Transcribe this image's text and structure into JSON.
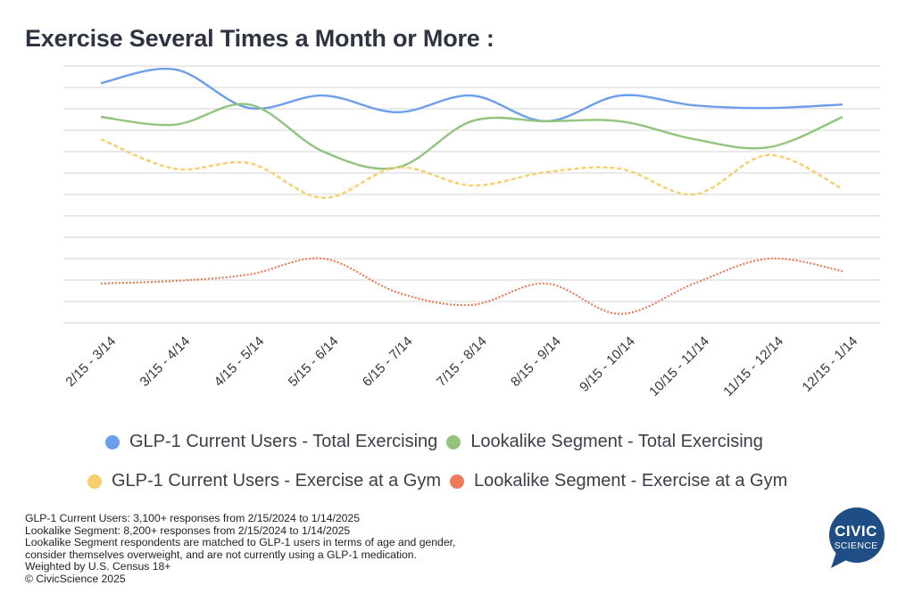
{
  "title": "Exercise Several Times a Month or More :",
  "chart_data": {
    "type": "line",
    "title": "Exercise Several Times a Month or More :",
    "xlabel": "",
    "ylabel": "",
    "ylim": [
      0,
      60
    ],
    "y_gridlines": [
      0,
      5,
      10,
      15,
      20,
      25,
      30,
      35,
      40,
      45,
      50,
      55,
      60
    ],
    "y_tick_labels_visible": false,
    "grid": true,
    "smooth": true,
    "legend_position": "bottom",
    "categories": [
      "2/15 - 3/14",
      "3/15 - 4/14",
      "4/15 - 5/14",
      "5/15 - 6/14",
      "6/15 - 7/14",
      "7/15 - 8/14",
      "8/15 - 9/14",
      "9/15 - 10/14",
      "10/15 - 11/14",
      "11/15 - 12/14",
      "12/15 - 1/14"
    ],
    "series": [
      {
        "name": "GLP-1 Current Users - Total Exercising",
        "color": "#6d9eeb",
        "style": "solid",
        "values": [
          56.0,
          59.2,
          50.2,
          53.1,
          49.2,
          53.1,
          47.1,
          53.1,
          50.8,
          50.2,
          51.0
        ]
      },
      {
        "name": "Lookalike Segment - Total Exercising",
        "color": "#93c47d",
        "style": "solid",
        "values": [
          48.1,
          46.3,
          51.0,
          40.0,
          36.3,
          47.1,
          47.1,
          47.1,
          42.9,
          41.0,
          48.1
        ]
      },
      {
        "name": "GLP-1 Current Users - Exercise at a Gym",
        "color": "#f6cf6b",
        "style": "dashed",
        "values": [
          42.9,
          36.0,
          37.3,
          29.2,
          36.3,
          32.1,
          35.2,
          36.0,
          30.0,
          39.2,
          31.3
        ]
      },
      {
        "name": "Lookalike Segment - Exercise at a Gym",
        "color": "#ee7a5a",
        "style": "dotted",
        "values": [
          9.2,
          9.8,
          11.3,
          15.0,
          7.1,
          4.2,
          9.2,
          2.1,
          9.2,
          15.0,
          12.1
        ]
      }
    ]
  },
  "legend": [
    {
      "label": "GLP-1 Current Users - Total Exercising",
      "color": "#6d9eeb"
    },
    {
      "label": "Lookalike Segment - Total Exercising",
      "color": "#93c47d"
    },
    {
      "label": "GLP-1 Current Users - Exercise at a Gym",
      "color": "#f6cf6b"
    },
    {
      "label": "Lookalike Segment - Exercise at a Gym",
      "color": "#ee7a5a"
    }
  ],
  "notes": [
    "GLP-1 Current Users: 3,100+ responses from 2/15/2024 to 1/14/2025",
    "Lookalike Segment: 8,200+ responses from 2/15/2024 to 1/14/2025",
    "Lookalike Segment respondents are matched to GLP-1 users in terms of age and gender,",
    "consider themselves overweight, and are not currently using a GLP-1 medication.",
    "Weighted by U.S. Census 18+",
    "© CivicScience 2025"
  ],
  "logo": {
    "line1": "CIVIC",
    "line2": "SCIENCE",
    "color": "#1f4e86"
  }
}
